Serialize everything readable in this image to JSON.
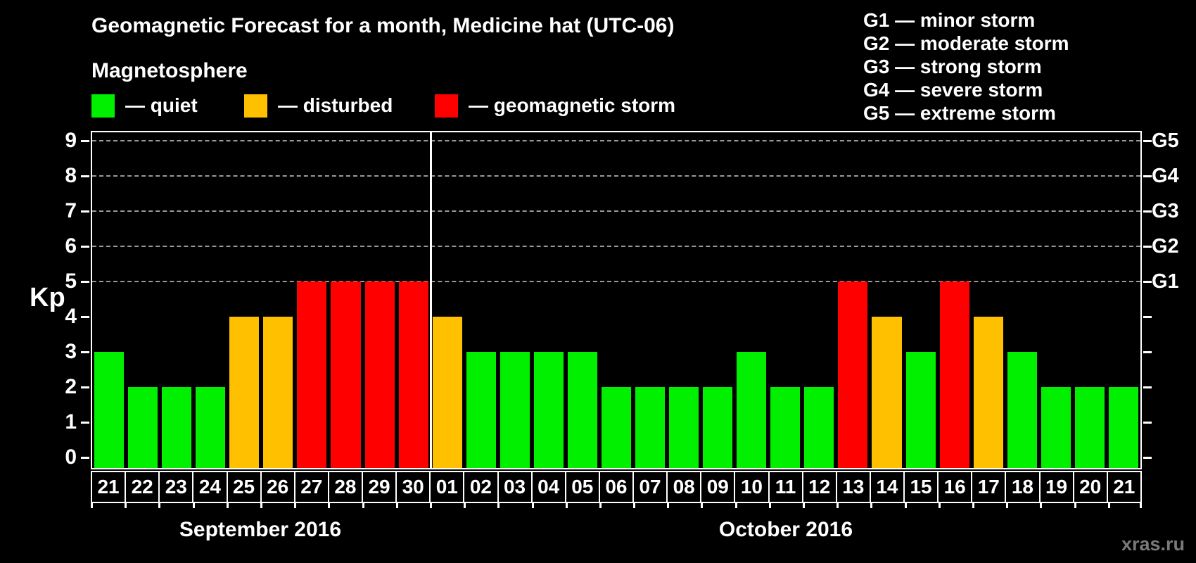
{
  "title": "Geomagnetic Forecast for a month, Medicine hat (UTC-06)",
  "legend": {
    "heading": "Magnetosphere",
    "items": [
      {
        "key": "quiet",
        "label": "— quiet",
        "color": "#00F000"
      },
      {
        "key": "disturbed",
        "label": "— disturbed",
        "color": "#FFC000"
      },
      {
        "key": "storm",
        "label": "— geomagnetic storm",
        "color": "#FF0000"
      }
    ]
  },
  "g_scale_legend": [
    "G1 — minor storm",
    "G2 — moderate storm",
    "G3 — strong storm",
    "G4 — severe storm",
    "G5 — extreme storm"
  ],
  "watermark": "xras.ru",
  "chart_data": {
    "type": "bar",
    "title": "Geomagnetic Forecast for a month, Medicine hat (UTC-06)",
    "ylabel": "Kp",
    "ylim": [
      0,
      9
    ],
    "yticks": [
      0,
      1,
      2,
      3,
      4,
      5,
      6,
      7,
      8,
      9
    ],
    "grid_levels": [
      5,
      6,
      7,
      8,
      9
    ],
    "grid_style": "dashed",
    "grid_color": "#999999",
    "right_axis_labels": [
      {
        "level": 5,
        "label": "G1"
      },
      {
        "level": 6,
        "label": "G2"
      },
      {
        "level": 7,
        "label": "G3"
      },
      {
        "level": 8,
        "label": "G4"
      },
      {
        "level": 9,
        "label": "G5"
      }
    ],
    "color_thresholds": {
      "disturbed_min": 4,
      "storm_min": 5
    },
    "colors": {
      "quiet": "#00F000",
      "disturbed": "#FFC000",
      "storm": "#FF0000"
    },
    "months": [
      {
        "label": "September 2016",
        "days": [
          "21",
          "22",
          "23",
          "24",
          "25",
          "26",
          "27",
          "28",
          "29",
          "30"
        ],
        "values": [
          3,
          2,
          2,
          2,
          4,
          4,
          5,
          5,
          5,
          5
        ]
      },
      {
        "label": "October 2016",
        "days": [
          "01",
          "02",
          "03",
          "04",
          "05",
          "06",
          "07",
          "08",
          "09",
          "10",
          "11",
          "12",
          "13",
          "14",
          "15",
          "16",
          "17",
          "18",
          "19",
          "20",
          "21"
        ],
        "values": [
          4,
          3,
          3,
          3,
          3,
          2,
          2,
          2,
          2,
          3,
          2,
          2,
          5,
          4,
          3,
          5,
          4,
          3,
          2,
          2,
          2
        ]
      }
    ]
  }
}
